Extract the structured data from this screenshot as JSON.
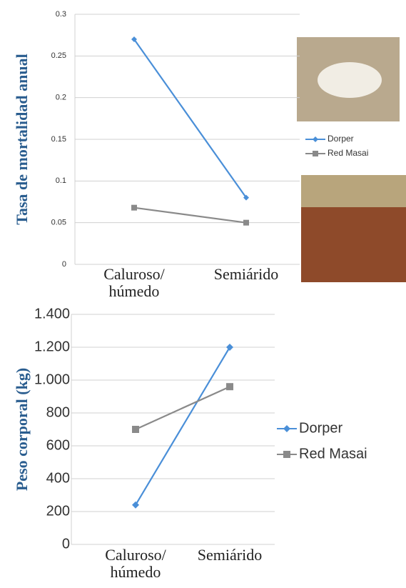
{
  "chart_data": [
    {
      "type": "line",
      "y_label": "Tasa de mortalidad anual",
      "categories": [
        "Caluroso/ húmedo",
        "Semiárido"
      ],
      "series": [
        {
          "name": "Dorper",
          "color": "#4a8fd8",
          "values": [
            0.27,
            0.08
          ]
        },
        {
          "name": "Red Masai",
          "color": "#8a8a8a",
          "values": [
            0.068,
            0.05
          ]
        }
      ],
      "ylim": [
        0,
        0.3
      ],
      "yticks": [
        0,
        0.05,
        0.1,
        0.15,
        0.2,
        0.25,
        0.3
      ],
      "grid": true,
      "legend": "right"
    },
    {
      "type": "line",
      "y_label": "Peso corporal (kg)",
      "categories": [
        "Caluroso/ húmedo",
        "Semiárido"
      ],
      "series": [
        {
          "name": "Dorper",
          "color": "#4a8fd8",
          "values": [
            240,
            1200
          ]
        },
        {
          "name": "Red Masai",
          "color": "#8a8a8a",
          "values": [
            700,
            960
          ]
        }
      ],
      "ylim": [
        0,
        1400
      ],
      "yticks": [
        0,
        200,
        400,
        600,
        800,
        {
          "value": 1000,
          "label": "1.000"
        },
        {
          "value": 1200,
          "label": "1.200"
        },
        {
          "value": 1400,
          "label": "1.400"
        }
      ],
      "grid": true,
      "legend": "right"
    }
  ]
}
